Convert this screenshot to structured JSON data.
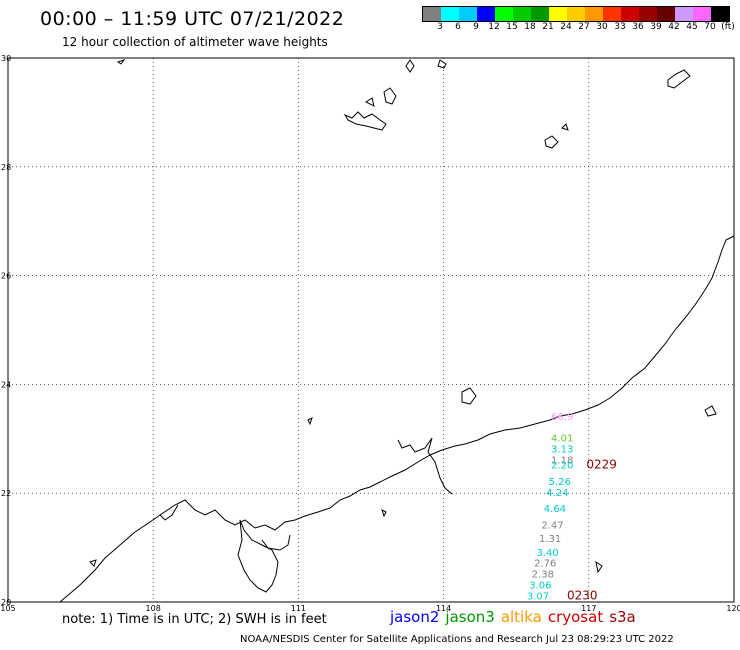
{
  "header": {
    "title": "00:00 – 11:59 UTC 07/21/2022",
    "subtitle": "12 hour collection of altimeter wave heights"
  },
  "legend": {
    "colors": [
      "#808080",
      "#00ffff",
      "#00ccff",
      "#0000ff",
      "#00ff00",
      "#00cc00",
      "#009900",
      "#ffff00",
      "#ffcc00",
      "#ff9900",
      "#ff3300",
      "#cc0000",
      "#990000",
      "#660000",
      "#cc99ff",
      "#ff66ff",
      "#000000"
    ],
    "labels": [
      "3",
      "6",
      "9",
      "12",
      "15",
      "18",
      "21",
      "24",
      "27",
      "30",
      "33",
      "36",
      "39",
      "42",
      "45",
      "70",
      "(ft)"
    ]
  },
  "axes": {
    "lon_min": 105,
    "lon_max": 120,
    "lat_min": 20,
    "lat_max": 30,
    "x_ticks": [
      {
        "v": 105,
        "label": "105"
      },
      {
        "v": 108,
        "label": "108"
      },
      {
        "v": 111,
        "label": "111"
      },
      {
        "v": 114,
        "label": "114"
      },
      {
        "v": 117,
        "label": "117"
      },
      {
        "v": 120,
        "label": "120"
      }
    ],
    "y_ticks": [
      {
        "v": 20,
        "label": "20"
      },
      {
        "v": 22,
        "label": "22"
      },
      {
        "v": 24,
        "label": "24"
      },
      {
        "v": 26,
        "label": "26"
      },
      {
        "v": 28,
        "label": "28"
      },
      {
        "v": 30,
        "label": "30"
      }
    ]
  },
  "track": {
    "points": [
      {
        "lon": 116.45,
        "lat": 23.35,
        "label": "66.9",
        "color": "#ff99ff"
      },
      {
        "lon": 116.45,
        "lat": 22.95,
        "label": "4.01",
        "color": "#66cc33"
      },
      {
        "lon": 116.45,
        "lat": 22.75,
        "label": "3.13",
        "color": "#00cccc"
      },
      {
        "lon": 116.45,
        "lat": 22.55,
        "label": "1.18",
        "color": "#808080"
      },
      {
        "lon": 116.45,
        "lat": 22.45,
        "label": "2.20",
        "color": "#00cccc"
      },
      {
        "lon": 116.4,
        "lat": 22.15,
        "label": "5.26",
        "color": "#00cccc"
      },
      {
        "lon": 116.35,
        "lat": 21.95,
        "label": "4.24",
        "color": "#00cccc"
      },
      {
        "lon": 116.3,
        "lat": 21.65,
        "label": "4.64",
        "color": "#00cccc"
      },
      {
        "lon": 116.25,
        "lat": 21.35,
        "label": "2.47",
        "color": "#808080"
      },
      {
        "lon": 116.2,
        "lat": 21.1,
        "label": "1.31",
        "color": "#808080"
      },
      {
        "lon": 116.15,
        "lat": 20.85,
        "label": "3.40",
        "color": "#00cccc"
      },
      {
        "lon": 116.1,
        "lat": 20.65,
        "label": "2.76",
        "color": "#808080"
      },
      {
        "lon": 116.05,
        "lat": 20.45,
        "label": "2.38",
        "color": "#808080"
      },
      {
        "lon": 116.0,
        "lat": 20.25,
        "label": "3.06",
        "color": "#00cccc"
      },
      {
        "lon": 115.95,
        "lat": 20.05,
        "label": "3.07",
        "color": "#00cccc"
      }
    ],
    "time_labels": [
      {
        "lon": 116.95,
        "lat": 22.45,
        "label": "0229"
      },
      {
        "lon": 116.55,
        "lat": 20.05,
        "label": "0230"
      }
    ]
  },
  "footer": {
    "note": "note:  1) Time is in UTC;  2) SWH is in feet",
    "satellites": [
      {
        "name": "jason2",
        "color": "#0000ff"
      },
      {
        "name": "jason3",
        "color": "#009900"
      },
      {
        "name": "altika",
        "color": "#ff9900"
      },
      {
        "name": "cryosat",
        "color": "#cc0000"
      },
      {
        "name": "s3a",
        "color": "#990000"
      }
    ],
    "credit": "NOAA/NESDIS Center for Satellite Applications and Research    Jul 23 08:29:23 UTC 2022"
  }
}
